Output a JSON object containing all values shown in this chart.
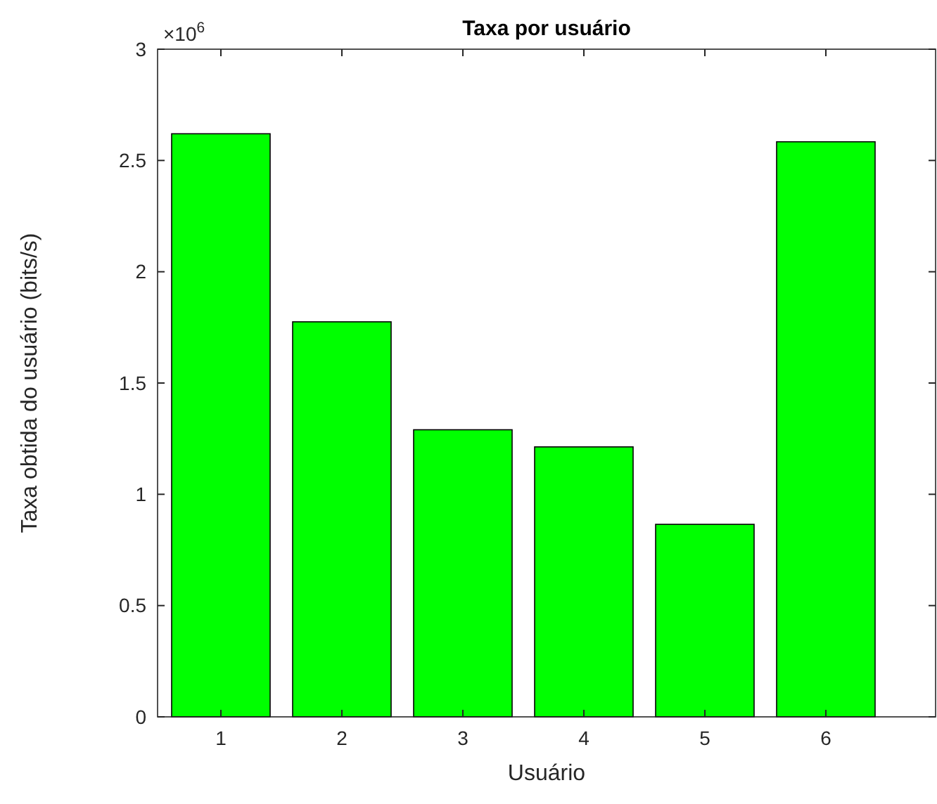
{
  "chart_data": {
    "type": "bar",
    "title": "Taxa por usuário",
    "xlabel": "Usuário",
    "ylabel": "Taxa obtida do usuário (bits/s)",
    "categories": [
      "1",
      "2",
      "3",
      "4",
      "5",
      "6"
    ],
    "values": [
      2.62,
      1.775,
      1.29,
      1.213,
      0.865,
      2.584
    ],
    "color": "#00ff00",
    "ylim": [
      0,
      3
    ],
    "yticks": [
      0,
      0.5,
      1,
      1.5,
      2,
      2.5,
      3
    ],
    "annotations": [
      "×10$^{6}$"
    ],
    "grid": false
  }
}
